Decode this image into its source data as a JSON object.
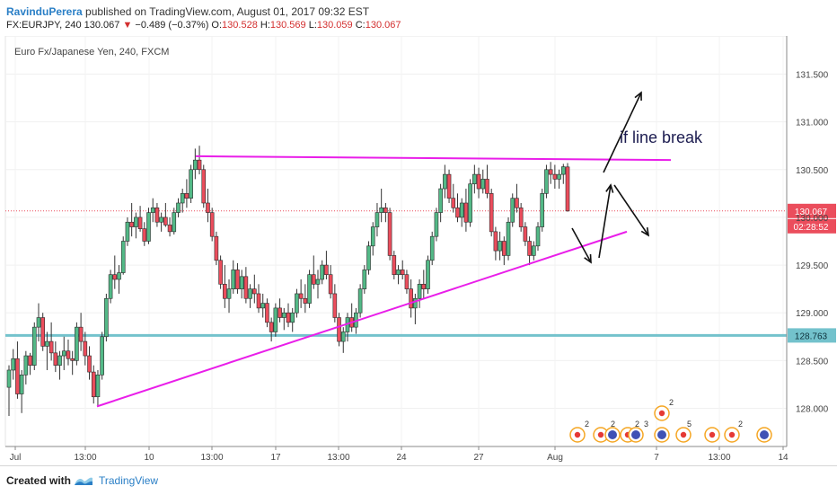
{
  "header": {
    "author": "RavinduPerera",
    "published_text": "published on TradingView.com, August 01, 2017 09:32 EST",
    "symbol": "FX:EURJPY, 240",
    "last": "130.067",
    "change": "−0.489 (−0.37%)",
    "o_label": "O:",
    "o_value": "130.528",
    "h_label": "H:",
    "h_value": "130.569",
    "l_label": "L:",
    "l_value": "130.059",
    "c_label": "C:",
    "c_value": "130.067"
  },
  "chart_data": {
    "type": "candlestick",
    "title": "Euro Fx/Japanese Yen, 240, FXCM",
    "y_ticks": [
      "128.000",
      "128.500",
      "129.000",
      "129.500",
      "130.000",
      "130.500",
      "131.000",
      "131.500"
    ],
    "ylim": [
      127.6,
      131.9
    ],
    "x_ticks": [
      "Jul",
      "13:00",
      "10",
      "13:00",
      "17",
      "13:00",
      "24",
      "13:00",
      "27",
      "13:00",
      "Aug",
      "7",
      "13:00",
      "14"
    ],
    "grid": true,
    "last_price_label": "130.067",
    "countdown_label": "02:28:52",
    "support_level_label": "128.763",
    "support_level": 128.763,
    "annotation": "if line break",
    "ohlc": [
      [
        128.22,
        128.45,
        127.92,
        128.4
      ],
      [
        128.4,
        128.62,
        128.3,
        128.52
      ],
      [
        128.52,
        128.7,
        128.1,
        128.15
      ],
      [
        128.15,
        128.4,
        127.95,
        128.35
      ],
      [
        128.35,
        128.6,
        128.25,
        128.55
      ],
      [
        128.55,
        128.58,
        128.35,
        128.45
      ],
      [
        128.45,
        128.9,
        128.4,
        128.85
      ],
      [
        128.85,
        129.1,
        128.7,
        128.95
      ],
      [
        128.95,
        129.0,
        128.6,
        128.65
      ],
      [
        128.65,
        128.8,
        128.4,
        128.7
      ],
      [
        128.7,
        128.9,
        128.5,
        128.58
      ],
      [
        128.58,
        128.7,
        128.38,
        128.45
      ],
      [
        128.45,
        128.6,
        128.3,
        128.55
      ],
      [
        128.55,
        128.75,
        128.4,
        128.6
      ],
      [
        128.6,
        128.72,
        128.45,
        128.52
      ],
      [
        128.52,
        128.6,
        128.35,
        128.5
      ],
      [
        128.5,
        128.9,
        128.45,
        128.85
      ],
      [
        128.85,
        129.0,
        128.6,
        128.7
      ],
      [
        128.7,
        128.8,
        128.45,
        128.55
      ],
      [
        128.55,
        128.65,
        128.3,
        128.38
      ],
      [
        128.38,
        128.45,
        128.05,
        128.12
      ],
      [
        128.12,
        128.4,
        128.02,
        128.35
      ],
      [
        128.35,
        128.8,
        128.3,
        128.75
      ],
      [
        128.75,
        129.2,
        128.7,
        129.15
      ],
      [
        129.15,
        129.45,
        129.1,
        129.4
      ],
      [
        129.4,
        129.6,
        129.25,
        129.35
      ],
      [
        129.35,
        129.5,
        129.2,
        129.42
      ],
      [
        129.42,
        129.8,
        129.4,
        129.75
      ],
      [
        129.75,
        130.0,
        129.7,
        129.95
      ],
      [
        129.95,
        130.15,
        129.8,
        129.9
      ],
      [
        129.9,
        130.05,
        129.78,
        130.0
      ],
      [
        130.0,
        130.12,
        129.85,
        129.88
      ],
      [
        129.88,
        129.95,
        129.7,
        129.75
      ],
      [
        129.75,
        130.1,
        129.72,
        130.05
      ],
      [
        130.05,
        130.2,
        129.95,
        130.1
      ],
      [
        130.1,
        130.15,
        129.9,
        129.95
      ],
      [
        129.95,
        130.05,
        129.85,
        130.0
      ],
      [
        130.0,
        130.15,
        129.9,
        129.92
      ],
      [
        129.92,
        130.0,
        129.8,
        129.85
      ],
      [
        129.85,
        130.1,
        129.82,
        130.05
      ],
      [
        130.05,
        130.2,
        130.0,
        130.15
      ],
      [
        130.15,
        130.3,
        130.05,
        130.25
      ],
      [
        130.25,
        130.4,
        130.1,
        130.2
      ],
      [
        130.2,
        130.55,
        130.15,
        130.5
      ],
      [
        130.5,
        130.72,
        130.4,
        130.6
      ],
      [
        130.6,
        130.75,
        130.45,
        130.5
      ],
      [
        130.5,
        130.55,
        130.1,
        130.15
      ],
      [
        130.15,
        130.3,
        129.95,
        130.05
      ],
      [
        130.05,
        130.1,
        129.75,
        129.8
      ],
      [
        129.8,
        129.85,
        129.5,
        129.55
      ],
      [
        129.55,
        129.6,
        129.25,
        129.3
      ],
      [
        129.3,
        129.5,
        129.05,
        129.15
      ],
      [
        129.15,
        129.35,
        129.0,
        129.25
      ],
      [
        129.25,
        129.55,
        129.2,
        129.45
      ],
      [
        129.45,
        129.52,
        129.2,
        129.25
      ],
      [
        129.25,
        129.45,
        129.15,
        129.38
      ],
      [
        129.38,
        129.48,
        129.1,
        129.15
      ],
      [
        129.15,
        129.3,
        129.05,
        129.25
      ],
      [
        129.25,
        129.4,
        129.1,
        129.2
      ],
      [
        129.2,
        129.3,
        129.0,
        129.05
      ],
      [
        129.05,
        129.2,
        128.95,
        129.1
      ],
      [
        129.1,
        129.15,
        128.85,
        128.9
      ],
      [
        128.9,
        128.95,
        128.7,
        128.8
      ],
      [
        128.8,
        129.1,
        128.75,
        129.05
      ],
      [
        129.05,
        129.15,
        128.9,
        128.95
      ],
      [
        128.95,
        129.05,
        128.82,
        129.0
      ],
      [
        129.0,
        129.1,
        128.85,
        128.9
      ],
      [
        128.9,
        129.05,
        128.8,
        129.0
      ],
      [
        129.0,
        129.25,
        128.95,
        129.2
      ],
      [
        129.2,
        129.35,
        129.05,
        129.15
      ],
      [
        129.15,
        129.3,
        129.0,
        129.1
      ],
      [
        129.1,
        129.45,
        129.05,
        129.4
      ],
      [
        129.4,
        129.6,
        129.25,
        129.3
      ],
      [
        129.3,
        129.45,
        129.15,
        129.35
      ],
      [
        129.35,
        129.55,
        129.3,
        129.5
      ],
      [
        129.5,
        129.65,
        129.35,
        129.4
      ],
      [
        129.4,
        129.5,
        129.15,
        129.2
      ],
      [
        129.2,
        129.3,
        128.9,
        128.95
      ],
      [
        128.95,
        129.0,
        128.65,
        128.7
      ],
      [
        128.7,
        128.85,
        128.58,
        128.8
      ],
      [
        128.8,
        129.0,
        128.7,
        128.95
      ],
      [
        128.95,
        129.1,
        128.8,
        128.85
      ],
      [
        128.85,
        129.05,
        128.78,
        129.0
      ],
      [
        129.0,
        129.3,
        128.95,
        129.25
      ],
      [
        129.25,
        129.5,
        129.2,
        129.45
      ],
      [
        129.45,
        129.75,
        129.4,
        129.7
      ],
      [
        129.7,
        129.95,
        129.6,
        129.9
      ],
      [
        129.9,
        130.15,
        129.8,
        130.05
      ],
      [
        130.05,
        130.3,
        129.95,
        130.1
      ],
      [
        130.1,
        130.15,
        129.95,
        130.05
      ],
      [
        130.05,
        130.1,
        129.55,
        129.6
      ],
      [
        129.6,
        129.65,
        129.35,
        129.4
      ],
      [
        129.4,
        129.5,
        129.3,
        129.45
      ],
      [
        129.45,
        129.55,
        129.35,
        129.4
      ],
      [
        129.4,
        129.45,
        129.2,
        129.25
      ],
      [
        129.25,
        129.35,
        128.95,
        129.05
      ],
      [
        129.05,
        129.2,
        128.88,
        129.15
      ],
      [
        129.15,
        129.35,
        129.05,
        129.3
      ],
      [
        129.3,
        129.45,
        129.15,
        129.25
      ],
      [
        129.25,
        129.6,
        129.2,
        129.55
      ],
      [
        129.55,
        129.85,
        129.5,
        129.8
      ],
      [
        129.8,
        130.1,
        129.75,
        130.05
      ],
      [
        130.05,
        130.35,
        129.95,
        130.3
      ],
      [
        130.3,
        130.55,
        130.2,
        130.45
      ],
      [
        130.45,
        130.5,
        130.15,
        130.2
      ],
      [
        130.2,
        130.35,
        130.05,
        130.1
      ],
      [
        130.1,
        130.25,
        129.95,
        130.0
      ],
      [
        130.0,
        130.2,
        129.9,
        130.15
      ],
      [
        130.15,
        130.3,
        129.85,
        129.95
      ],
      [
        129.95,
        130.4,
        129.9,
        130.35
      ],
      [
        130.35,
        130.55,
        130.25,
        130.45
      ],
      [
        130.45,
        130.52,
        130.2,
        130.3
      ],
      [
        130.3,
        130.5,
        130.25,
        130.4
      ],
      [
        130.4,
        130.55,
        130.2,
        130.25
      ],
      [
        130.25,
        130.3,
        129.8,
        129.85
      ],
      [
        129.85,
        129.9,
        129.55,
        129.65
      ],
      [
        129.65,
        129.85,
        129.55,
        129.75
      ],
      [
        129.75,
        129.8,
        129.5,
        129.6
      ],
      [
        129.6,
        130.0,
        129.55,
        129.95
      ],
      [
        129.95,
        130.25,
        129.9,
        130.2
      ],
      [
        130.2,
        130.35,
        130.05,
        130.1
      ],
      [
        130.1,
        130.15,
        129.85,
        129.9
      ],
      [
        129.9,
        129.95,
        129.7,
        129.75
      ],
      [
        129.75,
        129.8,
        129.5,
        129.6
      ],
      [
        129.6,
        129.75,
        129.55,
        129.7
      ],
      [
        129.7,
        129.95,
        129.65,
        129.9
      ],
      [
        129.9,
        130.3,
        129.85,
        130.25
      ],
      [
        130.25,
        130.55,
        130.2,
        130.5
      ],
      [
        130.5,
        130.58,
        130.35,
        130.45
      ],
      [
        130.45,
        130.55,
        130.3,
        130.4
      ],
      [
        130.4,
        130.5,
        130.3,
        130.45
      ],
      [
        130.45,
        130.56,
        130.35,
        130.53
      ],
      [
        130.528,
        130.569,
        130.059,
        130.067
      ]
    ]
  },
  "footer": {
    "created_with": "Created with",
    "brand": "TradingView"
  },
  "colors": {
    "up": "#53b987",
    "down": "#eb4d5c",
    "trend": "#e91ee9",
    "support": "#73c2cc"
  }
}
